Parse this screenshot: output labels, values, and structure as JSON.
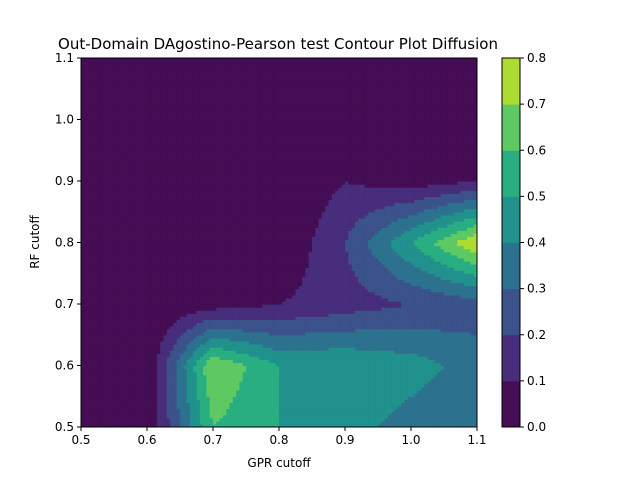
{
  "chart_data": {
    "type": "contour",
    "title": "Out-Domain DAgostino-Pearson test Contour Plot Diffusion",
    "xlabel": "GPR cutoff",
    "ylabel": "RF cutoff",
    "xlim": [
      0.5,
      1.1
    ],
    "ylim": [
      0.5,
      1.1
    ],
    "x_ticks": [
      "0.5",
      "0.6",
      "0.7",
      "0.8",
      "0.9",
      "1.0",
      "1.1"
    ],
    "y_ticks": [
      "0.5",
      "0.6",
      "0.7",
      "0.8",
      "0.9",
      "1.0",
      "1.1"
    ],
    "colorbar": {
      "range": [
        0.0,
        0.8
      ],
      "levels": [
        0.0,
        0.1,
        0.2,
        0.3,
        0.4,
        0.5,
        0.6,
        0.7,
        0.8
      ],
      "tick_labels": [
        "0.0",
        "0.1",
        "0.2",
        "0.3",
        "0.4",
        "0.5",
        "0.6",
        "0.7",
        "0.8"
      ],
      "colors": [
        "#450d54",
        "#472d7b",
        "#3b528b",
        "#2c728e",
        "#21918c",
        "#28ae80",
        "#5ec962",
        "#addc30",
        "#fde725"
      ]
    },
    "x": [
      0.5,
      0.6,
      0.7,
      0.8,
      0.9,
      1.0,
      1.1
    ],
    "y": [
      0.5,
      0.6,
      0.7,
      0.8,
      0.9,
      1.0,
      1.1
    ],
    "z": [
      [
        0.0,
        0.0,
        0.6,
        0.5,
        0.45,
        0.35,
        0.3
      ],
      [
        0.0,
        0.0,
        0.7,
        0.5,
        0.5,
        0.45,
        0.35
      ],
      [
        0.0,
        0.0,
        0.05,
        0.1,
        0.15,
        0.2,
        0.25
      ],
      [
        0.0,
        0.0,
        0.0,
        0.0,
        0.2,
        0.5,
        0.8
      ],
      [
        0.0,
        0.0,
        0.0,
        0.0,
        0.1,
        0.05,
        0.1
      ],
      [
        0.0,
        0.0,
        0.0,
        0.0,
        0.0,
        0.0,
        0.0
      ],
      [
        0.0,
        0.0,
        0.0,
        0.0,
        0.0,
        0.0,
        0.0
      ]
    ]
  }
}
